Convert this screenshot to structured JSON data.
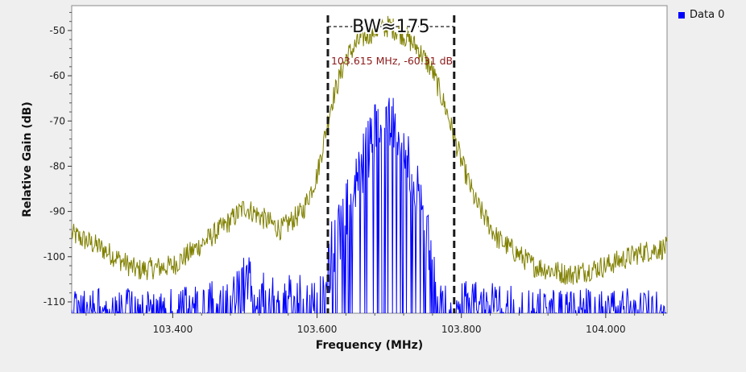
{
  "legend": {
    "label": "Data 0",
    "color": "#0000ff"
  },
  "marker_text": "103.615 MHz, -60.31 dB",
  "bw_label": "BW≈175",
  "colors": {
    "data0": "#0000ff",
    "max_hold": "#808000",
    "marker_text": "#8b1a1a",
    "bw_lines": "#1a1a1a",
    "plot_bg": "#ffffff",
    "window_bg": "#efefef"
  },
  "chart_data": {
    "type": "line",
    "xlabel": "Frequency (MHz)",
    "ylabel": "Relative Gain (dB)",
    "xlim": [
      103.26,
      104.085
    ],
    "ylim": [
      -112.5,
      -44.5
    ],
    "x_ticks": [
      103.4,
      103.6,
      103.8,
      104.0
    ],
    "x_tick_labels": [
      "103.400",
      "103.600",
      "103.800",
      "104.000"
    ],
    "y_ticks": [
      -50,
      -60,
      -70,
      -80,
      -90,
      -100,
      -110
    ],
    "y_tick_labels": [
      "-50",
      "-60",
      "-70",
      "-80",
      "-90",
      "-100",
      "-110"
    ],
    "grid": false,
    "legend_position": "top-right (outside plot)",
    "series": [
      {
        "name": "Data 0",
        "color": "#0000ff",
        "x": [
          103.26,
          103.3,
          103.35,
          103.4,
          103.45,
          103.48,
          103.5,
          103.52,
          103.55,
          103.58,
          103.6,
          103.61,
          103.62,
          103.64,
          103.66,
          103.68,
          103.7,
          103.72,
          103.74,
          103.76,
          103.78,
          103.79,
          103.8,
          103.85,
          103.9,
          103.95,
          104.0,
          104.05,
          104.085
        ],
        "values": [
          -111,
          -111,
          -111,
          -111,
          -110,
          -104,
          -99,
          -103,
          -104,
          -104,
          -106,
          -102,
          -92,
          -84,
          -74,
          -66,
          -62,
          -68,
          -80,
          -92,
          -106,
          -108,
          -109,
          -110,
          -111,
          -111,
          -111,
          -111,
          -111
        ]
      },
      {
        "x": [
          103.26,
          103.3,
          103.35,
          103.4,
          103.45,
          103.48,
          103.5,
          103.52,
          103.55,
          103.58,
          103.6,
          103.62,
          103.64,
          103.66,
          103.68,
          103.7,
          103.72,
          103.74,
          103.76,
          103.78,
          103.8,
          103.82,
          103.85,
          103.9,
          103.95,
          104.0,
          104.05,
          104.085
        ],
        "values": [
          -95,
          -98,
          -103,
          -102,
          -96,
          -92,
          -89,
          -91,
          -94,
          -90,
          -82,
          -66,
          -56,
          -52,
          -50,
          -49,
          -51,
          -54,
          -59,
          -68,
          -79,
          -88,
          -96,
          -102,
          -104,
          -102,
          -99,
          -98
        ]
      }
    ],
    "annotations": [
      {
        "type": "vertical_dashed_line",
        "x": 103.615
      },
      {
        "type": "vertical_dashed_line",
        "x": 103.79
      },
      {
        "type": "marker_label",
        "x": 103.615,
        "y": -60.31
      }
    ]
  }
}
